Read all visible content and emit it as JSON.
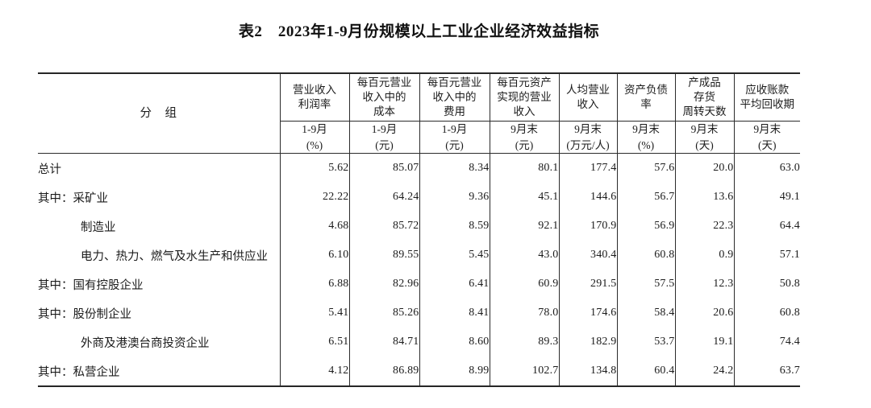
{
  "page": {
    "title": "表2　2023年1-9月份规模以上工业企业经济效益指标"
  },
  "table": {
    "group_header": "分　组",
    "columns": [
      {
        "title": "营业收入\n利润率",
        "period": "1-9月\n(%)"
      },
      {
        "title": "每百元营业\n收入中的\n成本",
        "period": "1-9月\n(元)"
      },
      {
        "title": "每百元营业\n收入中的\n费用",
        "period": "1-9月\n(元)"
      },
      {
        "title": "每百元资产\n实现的营业\n收入",
        "period": "9月末\n(元)"
      },
      {
        "title": "人均营业\n收入",
        "period": "9月末\n(万元/人)"
      },
      {
        "title": "资产负债\n率",
        "period": "9月末\n(%)"
      },
      {
        "title": "产成品\n存货\n周转天数",
        "period": "9月末\n(天)"
      },
      {
        "title": "应收账款\n平均回收期",
        "period": "9月末\n(天)"
      }
    ],
    "rows": [
      {
        "label": "总计",
        "indent": 0,
        "values": [
          "5.62",
          "85.07",
          "8.34",
          "80.1",
          "177.4",
          "57.6",
          "20.0",
          "63.0"
        ]
      },
      {
        "label": "其中：采矿业",
        "indent": 0,
        "values": [
          "22.22",
          "64.24",
          "9.36",
          "45.1",
          "144.6",
          "56.7",
          "13.6",
          "49.1"
        ]
      },
      {
        "label": "制造业",
        "indent": 1,
        "values": [
          "4.68",
          "85.72",
          "8.59",
          "92.1",
          "170.9",
          "56.9",
          "22.3",
          "64.4"
        ]
      },
      {
        "label": "电力、热力、燃气及水生产和供应业",
        "indent": 1,
        "values": [
          "6.10",
          "89.55",
          "5.45",
          "43.0",
          "340.4",
          "60.8",
          "0.9",
          "57.1"
        ]
      },
      {
        "label": "其中：国有控股企业",
        "indent": 0,
        "values": [
          "6.88",
          "82.96",
          "6.41",
          "60.9",
          "291.5",
          "57.5",
          "12.3",
          "50.8"
        ]
      },
      {
        "label": "其中：股份制企业",
        "indent": 0,
        "values": [
          "5.41",
          "85.26",
          "8.41",
          "78.0",
          "174.6",
          "58.4",
          "20.6",
          "60.8"
        ]
      },
      {
        "label": "外商及港澳台商投资企业",
        "indent": 1,
        "values": [
          "6.51",
          "84.71",
          "8.60",
          "89.3",
          "182.9",
          "53.7",
          "19.1",
          "74.4"
        ]
      },
      {
        "label": "其中：私营企业",
        "indent": 0,
        "values": [
          "4.12",
          "86.89",
          "8.99",
          "102.7",
          "134.8",
          "60.4",
          "24.2",
          "63.7"
        ]
      }
    ]
  }
}
